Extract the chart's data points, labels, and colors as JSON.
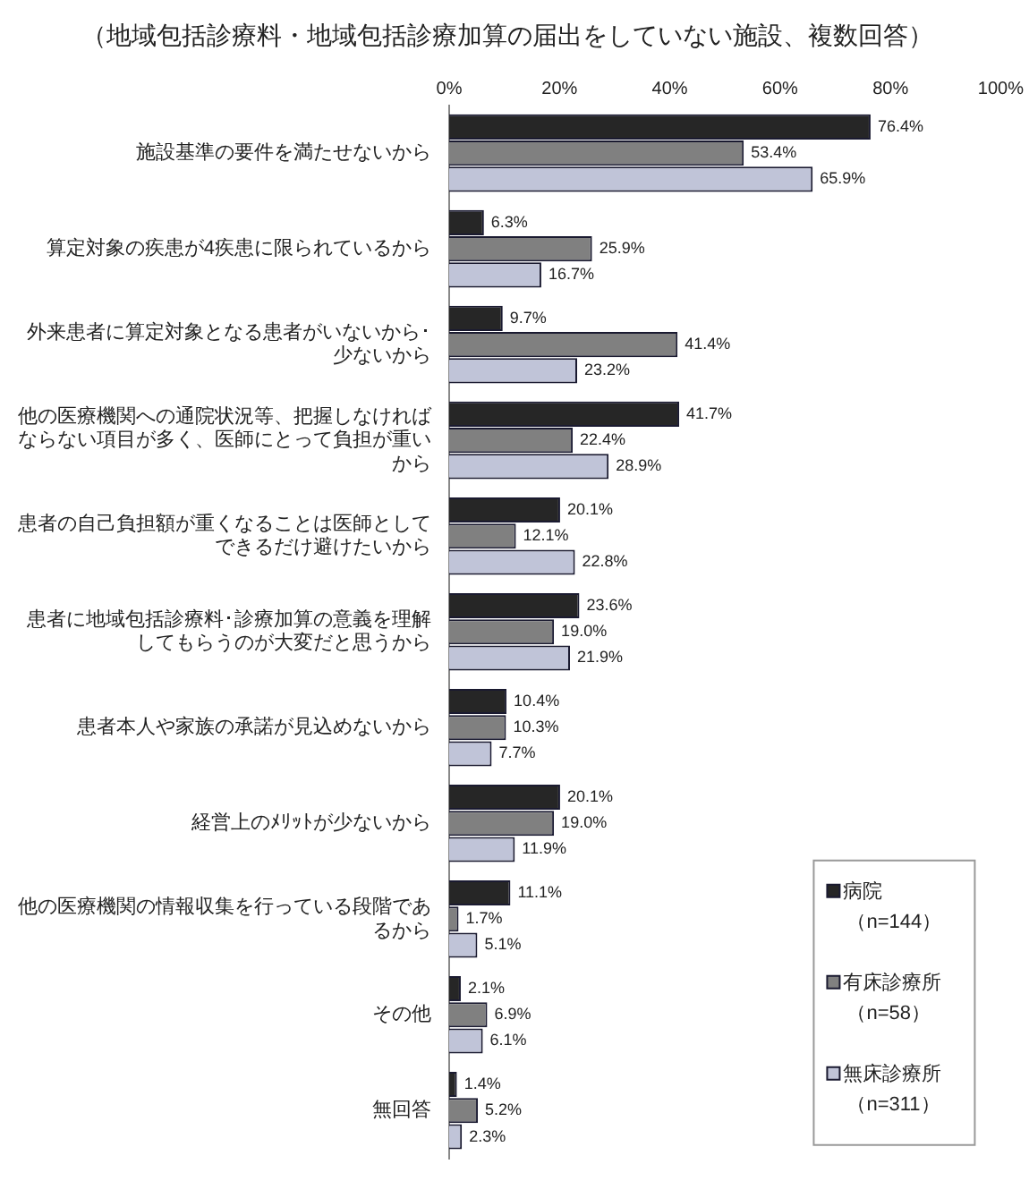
{
  "chart_data": {
    "type": "bar",
    "orientation": "horizontal",
    "title": "（地域包括診療料・地域包括診療加算の届出をしていない施設、複数回答）",
    "categories": [
      "施設基準の要件を満たせないから",
      "算定対象の疾患が4疾患に限られているから",
      "外来患者に算定対象となる患者がいないから･少ないから",
      "他の医療機関への通院状況等、把握しなければならない項目が多く、医師にとって負担が重いから",
      "患者の自己負担額が重くなることは医師としてできるだけ避けたいから",
      "患者に地域包括診療料･診療加算の意義を理解してもらうのが大変だと思うから",
      "患者本人や家族の承諾が見込めないから",
      "経営上のﾒﾘｯﾄが少ないから",
      "他の医療機関の情報収集を行っている段階であるから",
      "その他",
      "無回答"
    ],
    "series": [
      {
        "name": "病院（n=144）",
        "color": "#262626",
        "values": [
          76.4,
          6.3,
          9.7,
          41.7,
          20.1,
          23.6,
          10.4,
          20.1,
          11.1,
          2.1,
          1.4
        ],
        "value_labels": [
          "76.4%",
          "6.3%",
          "9.7%",
          "41.7%",
          "20.1%",
          "23.6%",
          "10.4%",
          "20.1%",
          "11.1%",
          "2.1%",
          "1.4%"
        ]
      },
      {
        "name": "有床診療所（n=58）",
        "color": "#808080",
        "values": [
          53.4,
          25.9,
          41.4,
          22.4,
          12.1,
          19.0,
          10.3,
          19.0,
          1.7,
          6.9,
          5.2
        ],
        "value_labels": [
          "53.4%",
          "25.9%",
          "41.4%",
          "22.4%",
          "12.1%",
          "19.0%",
          "10.3%",
          "19.0%",
          "1.7%",
          "6.9%",
          "5.2%"
        ]
      },
      {
        "name": "無床診療所（n=311）",
        "color": "#c0c4d8",
        "values": [
          65.9,
          16.7,
          23.2,
          28.9,
          22.8,
          21.9,
          7.7,
          11.9,
          5.1,
          6.1,
          2.3
        ],
        "value_labels": [
          "65.9%",
          "16.7%",
          "23.2%",
          "28.9%",
          "22.8%",
          "21.9%",
          "7.7%",
          "11.9%",
          "5.1%",
          "6.1%",
          "2.3%"
        ]
      }
    ],
    "xlim": [
      0,
      100
    ],
    "xticks": [
      {
        "value": 0,
        "label": "0%"
      },
      {
        "value": 20,
        "label": "20%"
      },
      {
        "value": 40,
        "label": "40%"
      },
      {
        "value": 60,
        "label": "60%"
      },
      {
        "value": 80,
        "label": "80%"
      },
      {
        "value": 100,
        "label": "100%"
      }
    ],
    "grid": false,
    "legend": "bottom right"
  }
}
